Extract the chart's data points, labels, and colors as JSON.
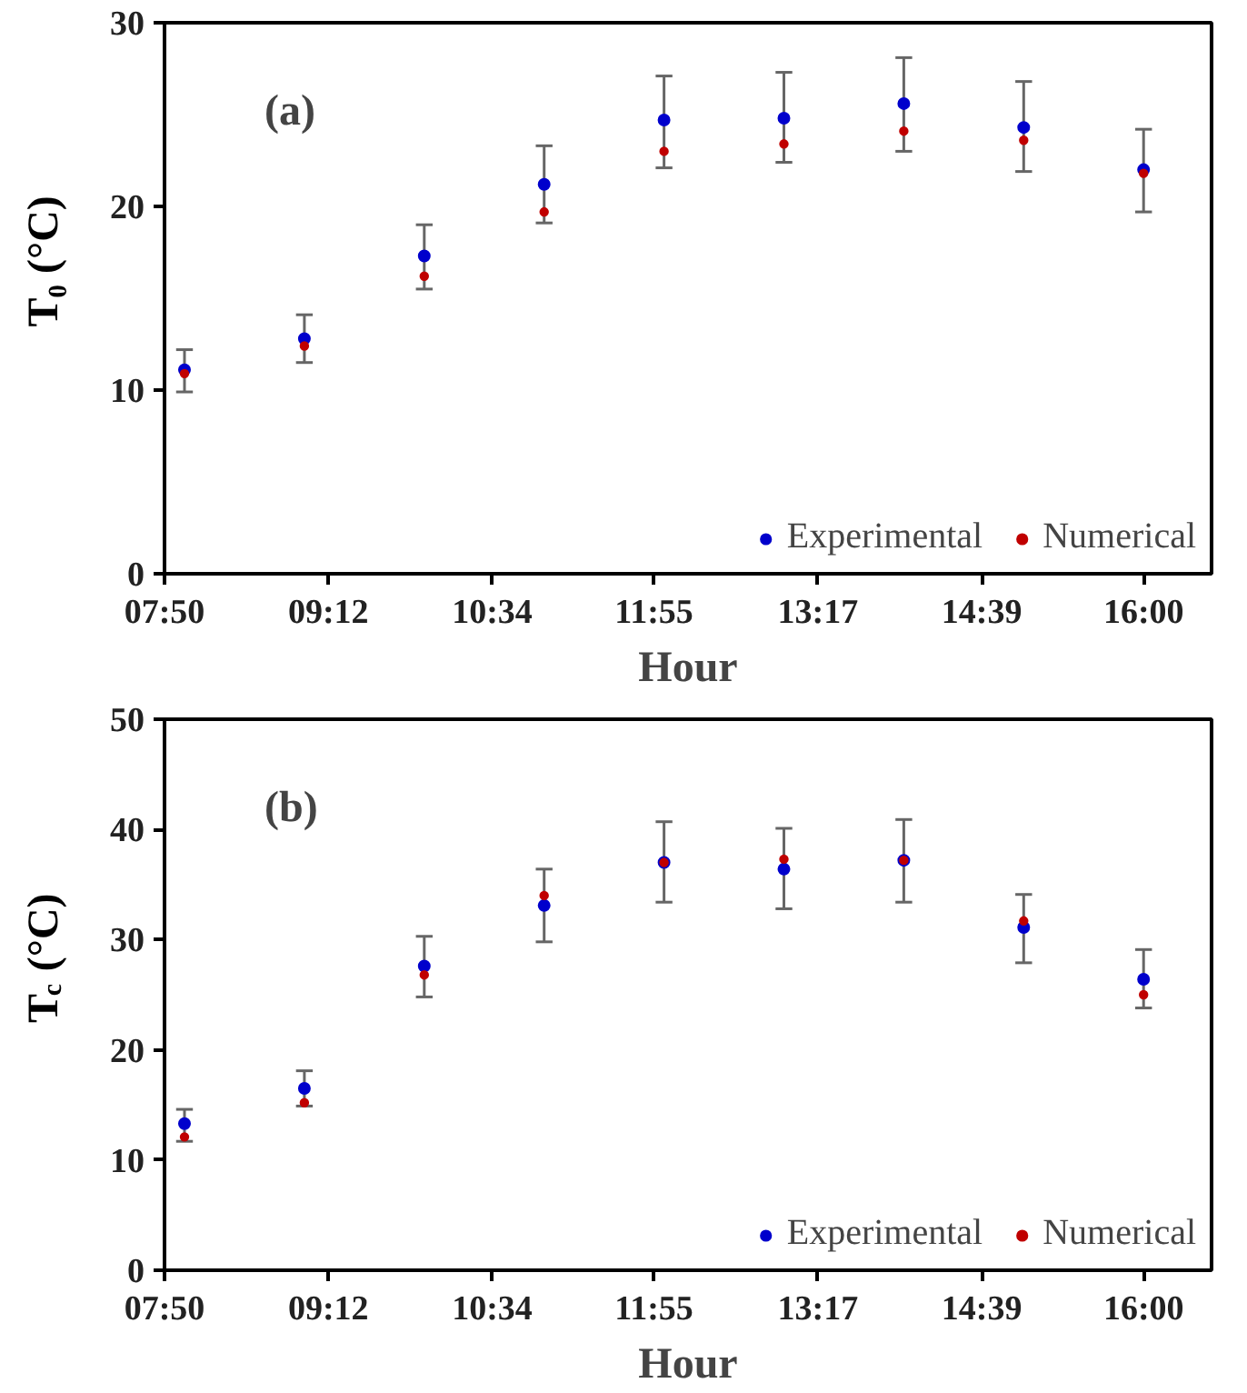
{
  "chart_data": [
    {
      "type": "scatter",
      "xlabel": "Hour",
      "ylabel": "T₀ (°C)",
      "annotations": [
        "(a)"
      ],
      "x": [
        8,
        9,
        10,
        11,
        12,
        13,
        14,
        15,
        16
      ],
      "xlim": [
        7.8333,
        16.567
      ],
      "xticks": [
        {
          "value": 7.8333,
          "label": "07:50"
        },
        {
          "value": 9.2,
          "label": "09:12"
        },
        {
          "value": 10.5667,
          "label": "10:34"
        },
        {
          "value": 11.9167,
          "label": "11:55"
        },
        {
          "value": 13.2833,
          "label": "13:17"
        },
        {
          "value": 14.65,
          "label": "14:39"
        },
        {
          "value": 16,
          "label": "16:00"
        }
      ],
      "ylim": [
        0,
        30
      ],
      "yticks": [
        0,
        10,
        20,
        30
      ],
      "grid": false,
      "legend": "bottom right",
      "marker": "circle",
      "series": [
        {
          "name": "Experimental",
          "color": "#0000cc",
          "values": [
            11.1,
            12.8,
            17.3,
            21.2,
            24.7,
            24.8,
            25.6,
            24.3,
            22.0
          ],
          "errors": [
            [
              9.9,
              12.2
            ],
            [
              11.5,
              14.1
            ],
            [
              15.5,
              19.0
            ],
            [
              19.1,
              23.3
            ],
            [
              22.1,
              27.1
            ],
            [
              22.4,
              27.3
            ],
            [
              23.0,
              28.1
            ],
            [
              21.9,
              26.8
            ],
            [
              19.7,
              24.2
            ]
          ]
        },
        {
          "name": "Numerical",
          "color": "#c00000",
          "values": [
            10.9,
            12.4,
            16.2,
            19.7,
            23.0,
            23.4,
            24.1,
            23.6,
            21.8
          ]
        }
      ]
    },
    {
      "type": "scatter",
      "xlabel": "Hour",
      "ylabel": "T$_{c}$ (°C)",
      "annotations": [
        "(b)"
      ],
      "x": [
        8,
        9,
        10,
        11,
        12,
        13,
        14,
        15,
        16
      ],
      "xlim": [
        7.8333,
        16.567
      ],
      "xticks": [
        {
          "value": 7.8333,
          "label": "07:50"
        },
        {
          "value": 9.2,
          "label": "09:12"
        },
        {
          "value": 10.5667,
          "label": "10:34"
        },
        {
          "value": 11.9167,
          "label": "11:55"
        },
        {
          "value": 13.2833,
          "label": "13:17"
        },
        {
          "value": 14.65,
          "label": "14:39"
        },
        {
          "value": 16,
          "label": "16:00"
        }
      ],
      "ylim": [
        0,
        50
      ],
      "yticks": [
        0,
        10,
        20,
        30,
        40,
        50
      ],
      "grid": false,
      "legend": "bottom right",
      "marker": "circle",
      "series": [
        {
          "name": "Experimental",
          "color": "#0000cc",
          "values": [
            13.3,
            16.5,
            27.6,
            33.1,
            37.0,
            36.4,
            37.2,
            31.1,
            26.4
          ],
          "errors": [
            [
              11.7,
              14.6
            ],
            [
              14.9,
              18.1
            ],
            [
              24.8,
              30.3
            ],
            [
              29.8,
              36.4
            ],
            [
              33.4,
              40.7
            ],
            [
              32.8,
              40.1
            ],
            [
              33.4,
              40.9
            ],
            [
              27.9,
              34.1
            ],
            [
              23.8,
              29.1
            ]
          ]
        },
        {
          "name": "Numerical",
          "color": "#c00000",
          "values": [
            12.1,
            15.2,
            26.8,
            34.0,
            37.0,
            37.3,
            37.2,
            31.7,
            25.0
          ]
        }
      ]
    }
  ]
}
